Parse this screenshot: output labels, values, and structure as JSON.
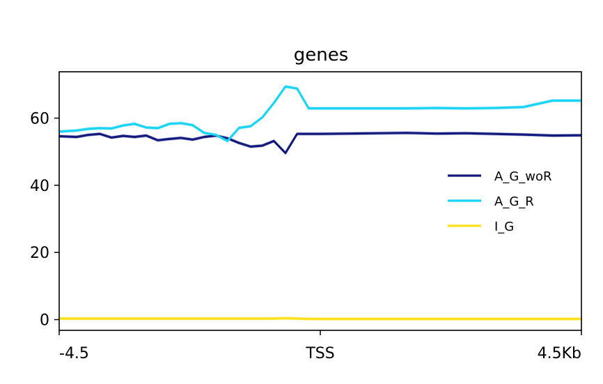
{
  "chart_data": {
    "type": "line",
    "title": "genes",
    "xlabel": "",
    "ylabel": "",
    "x_range": [
      -4.5,
      4.5
    ],
    "ylim": [
      -3.2,
      73.8
    ],
    "y_ticks": [
      0,
      20,
      40,
      60
    ],
    "x_ticks": [
      {
        "value": -4.5,
        "label": "-4.5"
      },
      {
        "value": 0,
        "label": "TSS"
      },
      {
        "value": 4.5,
        "label": "4.5Kb"
      }
    ],
    "grid": false,
    "legend_position": "right",
    "x": [
      -4.5,
      -4.2,
      -4.0,
      -3.8,
      -3.6,
      -3.4,
      -3.2,
      -3.0,
      -2.8,
      -2.6,
      -2.4,
      -2.2,
      -2.0,
      -1.8,
      -1.6,
      -1.4,
      -1.2,
      -1.0,
      -0.8,
      -0.6,
      -0.4,
      -0.2,
      0.0,
      0.5,
      1.0,
      1.5,
      2.0,
      2.5,
      3.0,
      3.5,
      4.0,
      4.5
    ],
    "series": [
      {
        "name": "A_G_woR",
        "color": "#141a7a",
        "band_color": "#b3b3dd",
        "values": [
          54.6,
          54.4,
          55.0,
          55.3,
          54.2,
          54.7,
          54.4,
          54.8,
          53.4,
          53.8,
          54.1,
          53.6,
          54.4,
          54.8,
          54.0,
          52.6,
          51.5,
          51.8,
          53.2,
          49.6,
          55.3,
          55.3,
          55.3,
          55.4,
          55.5,
          55.6,
          55.4,
          55.5,
          55.3,
          55.1,
          54.8,
          54.9
        ]
      },
      {
        "name": "A_G_R",
        "color": "#1ad4f5",
        "band_color": "#b8ecf6",
        "values": [
          56.0,
          56.3,
          56.8,
          57.0,
          56.9,
          57.8,
          58.3,
          57.2,
          57.0,
          58.3,
          58.5,
          57.9,
          55.6,
          55.0,
          53.2,
          57.1,
          57.6,
          60.2,
          64.5,
          69.4,
          68.8,
          62.9,
          62.9,
          62.9,
          62.9,
          62.9,
          63.0,
          62.9,
          63.0,
          63.3,
          65.2,
          65.2
        ]
      },
      {
        "name": "I_G",
        "color": "#ffe01a",
        "band_color": "#fff3a8",
        "values": [
          0.3,
          0.3,
          0.3,
          0.3,
          0.3,
          0.3,
          0.3,
          0.3,
          0.3,
          0.3,
          0.3,
          0.3,
          0.3,
          0.3,
          0.3,
          0.3,
          0.3,
          0.3,
          0.3,
          0.4,
          0.3,
          0.2,
          0.2,
          0.2,
          0.2,
          0.2,
          0.2,
          0.2,
          0.2,
          0.2,
          0.2,
          0.2
        ]
      }
    ]
  }
}
